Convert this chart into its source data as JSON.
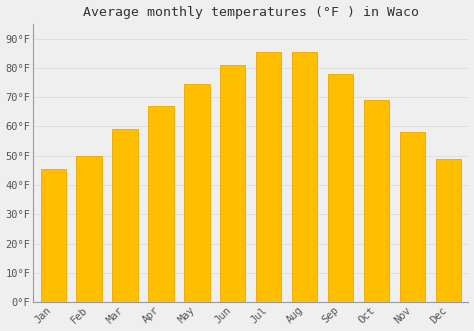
{
  "title": "Average monthly temperatures (°F ) in Waco",
  "months": [
    "Jan",
    "Feb",
    "Mar",
    "Apr",
    "May",
    "Jun",
    "Jul",
    "Aug",
    "Sep",
    "Oct",
    "Nov",
    "Dec"
  ],
  "values": [
    45.5,
    50.0,
    59.0,
    67.0,
    74.5,
    81.0,
    85.5,
    85.5,
    78.0,
    69.0,
    58.0,
    49.0
  ],
  "bar_color": "#FFBE00",
  "bar_edge_color": "#E8A800",
  "background_color": "#EFEFEF",
  "grid_color": "#DDDDDD",
  "yticks": [
    0,
    10,
    20,
    30,
    40,
    50,
    60,
    70,
    80,
    90
  ],
  "ytick_labels": [
    "0°F",
    "10°F",
    "20°F",
    "30°F",
    "40°F",
    "50°F",
    "60°F",
    "70°F",
    "80°F",
    "90°F"
  ],
  "ylim": [
    0,
    95
  ],
  "title_fontsize": 9.5,
  "tick_fontsize": 7.5,
  "title_color": "#333333",
  "tick_color": "#555555",
  "spine_color": "#999999"
}
